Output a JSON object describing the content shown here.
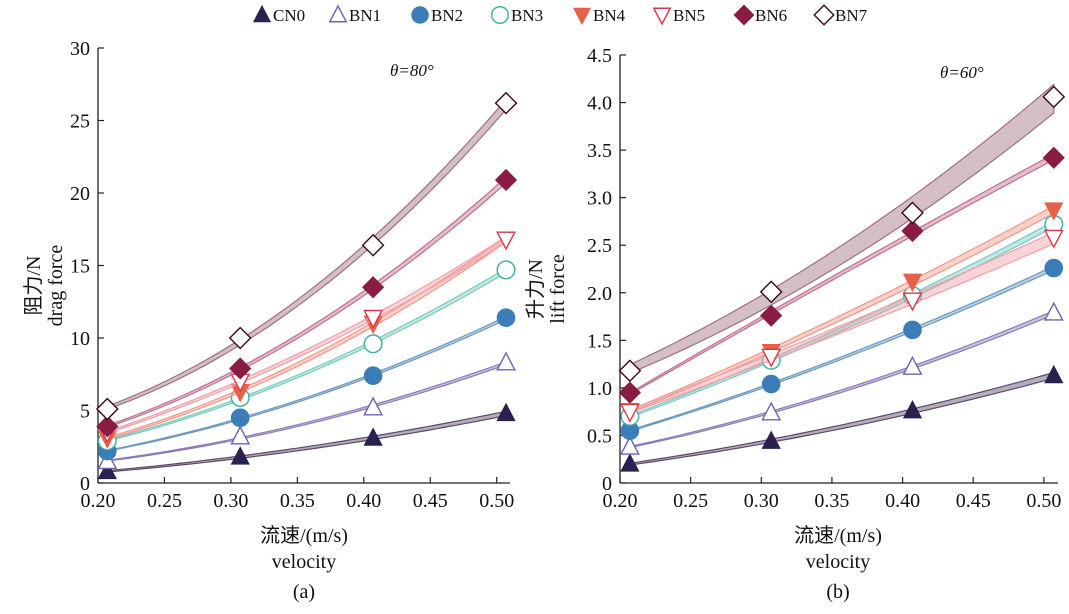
{
  "legend": [
    {
      "label": "CN0",
      "marker": "triangle-up",
      "filled": true,
      "color": "#2b2150"
    },
    {
      "label": "BN1",
      "marker": "triangle-up",
      "filled": false,
      "color": "#7060b0"
    },
    {
      "label": "BN2",
      "marker": "circle",
      "filled": true,
      "color": "#3a7db8"
    },
    {
      "label": "BN3",
      "marker": "circle",
      "filled": false,
      "color": "#3aaea0"
    },
    {
      "label": "BN4",
      "marker": "triangle-down",
      "filled": true,
      "color": "#e8604a"
    },
    {
      "label": "BN5",
      "marker": "triangle-down",
      "filled": false,
      "color": "#d83a4a"
    },
    {
      "label": "BN6",
      "marker": "diamond",
      "filled": true,
      "color": "#8a1c44"
    },
    {
      "label": "BN7",
      "marker": "diamond",
      "filled": false,
      "color": "#3a0a14"
    }
  ],
  "band_colors": [
    "#5a4a6a",
    "#8a7ab8",
    "#6a98c0",
    "#7acac0",
    "#f0988a",
    "#f0a0a8",
    "#c07090",
    "#a07080"
  ],
  "chart_data": [
    {
      "type": "scatter",
      "panel_label": "(a)",
      "annotation": "θ=80°",
      "ylabel_cn": "阻力/N",
      "ylabel_en": "drag force",
      "xlabel_cn": "流速/(m/s)",
      "xlabel_en": "velocity",
      "xlim": [
        0.2,
        0.51
      ],
      "ylim": [
        0,
        30
      ],
      "xticks": [
        "0.20",
        "0.25",
        "0.30",
        "0.35",
        "0.40",
        "0.45",
        "0.50"
      ],
      "yticks": [
        "0",
        "5",
        "10",
        "15",
        "20",
        "25",
        "30"
      ],
      "x": [
        0.207,
        0.307,
        0.407,
        0.507
      ],
      "series": [
        {
          "name": "CN0",
          "values": [
            0.8,
            1.8,
            3.1,
            4.8
          ],
          "band": 0.15
        },
        {
          "name": "BN1",
          "values": [
            1.5,
            3.2,
            5.2,
            8.3
          ],
          "band": 0.1
        },
        {
          "name": "BN2",
          "values": [
            2.2,
            4.5,
            7.4,
            11.4
          ],
          "band": 0.1
        },
        {
          "name": "BN3",
          "values": [
            2.9,
            5.9,
            9.6,
            14.7
          ],
          "band": 0.15
        },
        {
          "name": "BN4",
          "values": [
            3.1,
            6.3,
            11.0,
            16.8
          ],
          "band": 0.2
        },
        {
          "name": "BN5",
          "values": [
            3.5,
            7.0,
            11.4,
            16.8
          ],
          "band": 0.2
        },
        {
          "name": "BN6",
          "values": [
            3.9,
            7.9,
            13.5,
            20.9
          ],
          "band": 0.2
        },
        {
          "name": "BN7",
          "values": [
            5.1,
            10.0,
            16.4,
            26.2
          ],
          "band": 0.35
        }
      ]
    },
    {
      "type": "scatter",
      "panel_label": "(b)",
      "annotation": "θ=60°",
      "ylabel_cn": "升力/N",
      "ylabel_en": "lift force",
      "xlabel_cn": "流速/(m/s)",
      "xlabel_en": "velocity",
      "xlim": [
        0.2,
        0.51
      ],
      "ylim": [
        0,
        4.5
      ],
      "xticks": [
        "0.20",
        "0.25",
        "0.30",
        "0.35",
        "0.40",
        "0.45",
        "0.50"
      ],
      "yticks": [
        "0",
        "0.5",
        "1.0",
        "1.5",
        "2.0",
        "2.5",
        "3.0",
        "3.5",
        "4.0",
        "4.5"
      ],
      "x": [
        0.207,
        0.307,
        0.407,
        0.507
      ],
      "series": [
        {
          "name": "CN0",
          "values": [
            0.2,
            0.44,
            0.76,
            1.13
          ],
          "band": 0.03
        },
        {
          "name": "BN1",
          "values": [
            0.38,
            0.74,
            1.22,
            1.79
          ],
          "band": 0.02
        },
        {
          "name": "BN2",
          "values": [
            0.55,
            1.04,
            1.61,
            2.26
          ],
          "band": 0.02
        },
        {
          "name": "BN3",
          "values": [
            0.7,
            1.29,
            1.97,
            2.72
          ],
          "band": 0.03
        },
        {
          "name": "BN4",
          "values": [
            0.76,
            1.38,
            2.12,
            2.87
          ],
          "band": 0.04
        },
        {
          "name": "BN5",
          "values": [
            0.75,
            1.33,
            1.92,
            2.58
          ],
          "band": 0.06
        },
        {
          "name": "BN6",
          "values": [
            0.95,
            1.76,
            2.65,
            3.42
          ],
          "band": 0.03
        },
        {
          "name": "BN7",
          "values": [
            1.18,
            2.01,
            2.84,
            4.06
          ],
          "band": 0.15
        }
      ]
    }
  ]
}
